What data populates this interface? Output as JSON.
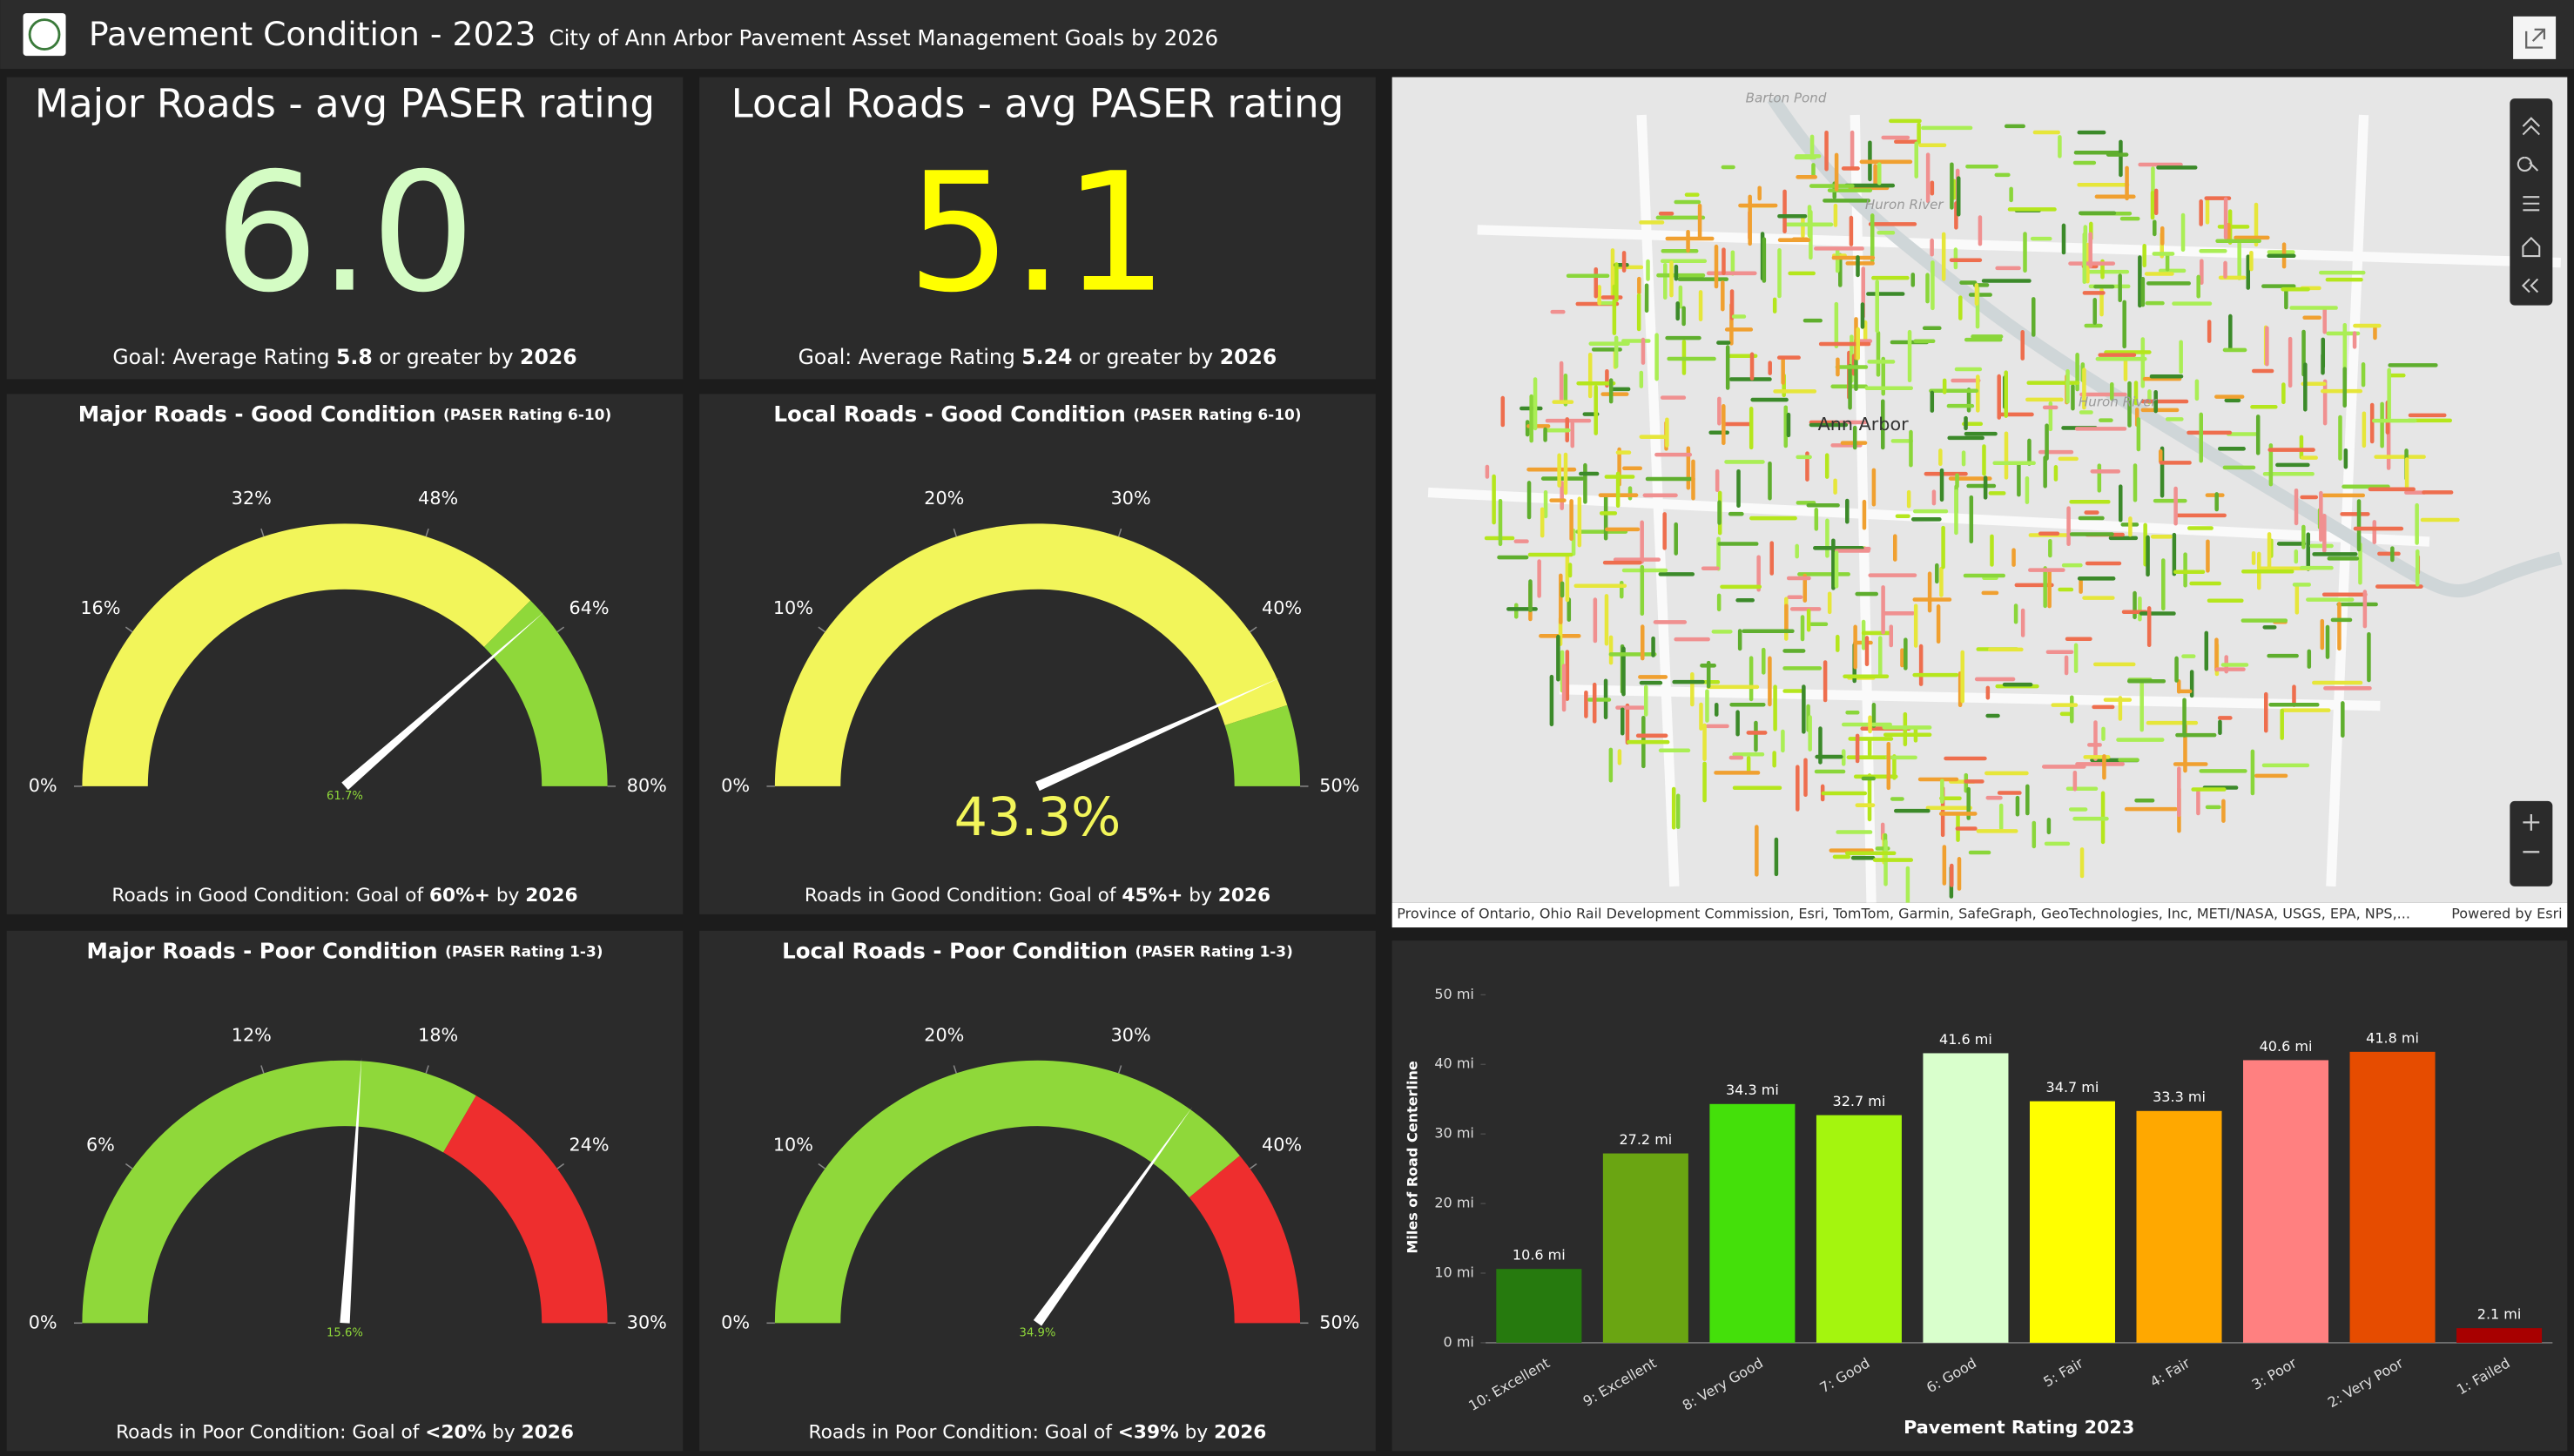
{
  "header": {
    "title": "Pavement Condition - 2023",
    "subtitle": "City of Ann Arbor Pavement Asset Management Goals by 2026"
  },
  "indicators": [
    {
      "title": "Major Roads - avg PASER rating",
      "value": "6.0",
      "color": "#d4fcc4",
      "goal": [
        "Goal: Average Rating ",
        "5.8",
        " or greater by ",
        "2026"
      ]
    },
    {
      "title": "Local Roads - avg PASER rating",
      "value": "5.1",
      "color": "#ffff00",
      "goal": [
        "Goal: Average Rating ",
        "5.24",
        " or greater by ",
        "2026"
      ]
    }
  ],
  "gauges": [
    {
      "title": "Major Roads - Good Condition ",
      "subtitle": "(PASER Rating 6-10)",
      "min": 0,
      "max": 80,
      "ticks": [
        {
          "value": 0,
          "label": "0%"
        },
        {
          "value": 16,
          "label": "16%"
        },
        {
          "value": 32,
          "label": "32%"
        },
        {
          "value": 48,
          "label": "48%"
        },
        {
          "value": 64,
          "label": "64%"
        },
        {
          "value": 80,
          "label": "80%"
        }
      ],
      "value": 61.7,
      "value_label": "61.7%",
      "value_label_color": "#8fd83a",
      "value_label_large": false,
      "bands": [
        {
          "from": 0,
          "to": 60,
          "color": "#f2f55a"
        },
        {
          "from": 60,
          "to": 80,
          "color": "#8fd83a"
        }
      ],
      "footer": [
        "Roads in Good Condition: Goal of ",
        "60%+",
        " by ",
        "2026"
      ]
    },
    {
      "title": "Local Roads - Good Condition ",
      "subtitle": "(PASER Rating 6-10)",
      "min": 0,
      "max": 50,
      "ticks": [
        {
          "value": 0,
          "label": "0%"
        },
        {
          "value": 10,
          "label": "10%"
        },
        {
          "value": 20,
          "label": "20%"
        },
        {
          "value": 30,
          "label": "30%"
        },
        {
          "value": 40,
          "label": "40%"
        },
        {
          "value": 50,
          "label": "50%"
        }
      ],
      "value": 43.3,
      "value_label": "43.3%",
      "value_label_color": "#f2f55a",
      "value_label_large": true,
      "bands": [
        {
          "from": 0,
          "to": 45,
          "color": "#f2f55a"
        },
        {
          "from": 45,
          "to": 50,
          "color": "#8fd83a"
        }
      ],
      "footer": [
        "Roads in Good Condition: Goal of ",
        "45%+",
        " by ",
        "2026"
      ]
    },
    {
      "title": "Major Roads - Poor Condition ",
      "subtitle": "(PASER Rating 1-3)",
      "min": 0,
      "max": 30,
      "ticks": [
        {
          "value": 0,
          "label": "0%"
        },
        {
          "value": 6,
          "label": "6%"
        },
        {
          "value": 12,
          "label": "12%"
        },
        {
          "value": 18,
          "label": "18%"
        },
        {
          "value": 24,
          "label": "24%"
        },
        {
          "value": 30,
          "label": "30%"
        }
      ],
      "value": 15.6,
      "value_label": "15.6%",
      "value_label_color": "#8fd83a",
      "value_label_large": false,
      "bands": [
        {
          "from": 0,
          "to": 20,
          "color": "#8fd83a"
        },
        {
          "from": 20,
          "to": 30,
          "color": "#ee2e2e"
        }
      ],
      "footer": [
        "Roads in Poor Condition: Goal of ",
        "<20%",
        " by ",
        "2026"
      ]
    },
    {
      "title": "Local Roads - Poor Condition ",
      "subtitle": "(PASER Rating 1-3)",
      "min": 0,
      "max": 50,
      "ticks": [
        {
          "value": 0,
          "label": "0%"
        },
        {
          "value": 10,
          "label": "10%"
        },
        {
          "value": 20,
          "label": "20%"
        },
        {
          "value": 30,
          "label": "30%"
        },
        {
          "value": 40,
          "label": "40%"
        },
        {
          "value": 50,
          "label": "50%"
        }
      ],
      "value": 34.9,
      "value_label": "34.9%",
      "value_label_color": "#8fd83a",
      "value_label_large": false,
      "bands": [
        {
          "from": 0,
          "to": 39,
          "color": "#8fd83a"
        },
        {
          "from": 39,
          "to": 50,
          "color": "#ee2e2e"
        }
      ],
      "footer": [
        "Roads in Poor Condition: Goal of ",
        "<39%",
        " by ",
        "2026"
      ]
    }
  ],
  "map": {
    "labels": [
      "Ann Arbor",
      "Barton Pond",
      "Huron River",
      "Huron River"
    ],
    "attribution": "Province of Ontario, Ohio Rail Development Commission, Esri, TomTom, Garmin, SafeGraph, GeoTechnologies, Inc, METI/NASA, USGS, EPA, NPS,...",
    "powered": "Powered by Esri"
  },
  "chart_data": {
    "type": "bar",
    "x_label": "Pavement Rating 2023",
    "y_label": "Miles of Road Centerline",
    "categories": [
      "10: Excellent",
      "9: Excellent",
      "8: Very Good",
      "7: Good",
      "6: Good",
      "5: Fair",
      "4: Fair",
      "3: Poor",
      "2: Very Poor",
      "1: Failed"
    ],
    "values": [
      10.6,
      27.2,
      34.3,
      32.7,
      41.6,
      34.7,
      33.3,
      40.6,
      41.8,
      2.1
    ],
    "value_labels": [
      "10.6 mi",
      "27.2 mi",
      "34.3 mi",
      "32.7 mi",
      "41.6 mi",
      "34.7 mi",
      "33.3 mi",
      "40.6 mi",
      "41.8 mi",
      "2.1 mi"
    ],
    "colors": [
      "#267a0e",
      "#6aa512",
      "#44e00a",
      "#a4f50e",
      "#d9ffcc",
      "#ffff00",
      "#ffa800",
      "#ff8080",
      "#e64c00",
      "#a80000"
    ],
    "ylim": [
      0,
      50
    ],
    "yticks": [
      {
        "value": 0,
        "label": "0 mi"
      },
      {
        "value": 10,
        "label": "10 mi"
      },
      {
        "value": 20,
        "label": "20 mi"
      },
      {
        "value": 30,
        "label": "30 mi"
      },
      {
        "value": 40,
        "label": "40 mi"
      },
      {
        "value": 50,
        "label": "50 mi"
      }
    ],
    "grid": false
  }
}
